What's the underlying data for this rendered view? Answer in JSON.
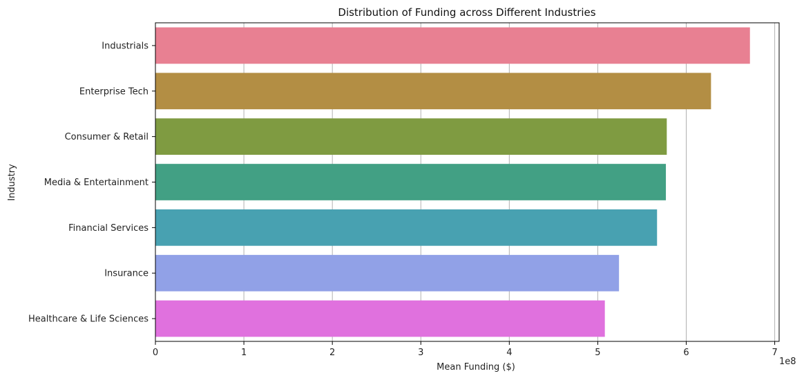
{
  "chart_data": {
    "type": "bar",
    "orientation": "horizontal",
    "title": "Distribution of Funding across Different Industries",
    "xlabel": "Mean Funding ($)",
    "ylabel": "Industry",
    "x_offset_label": "1e8",
    "xlim": [
      0,
      7.05
    ],
    "x_ticks": [
      0,
      1,
      2,
      3,
      4,
      5,
      6,
      7
    ],
    "x_tick_labels": [
      "0",
      "1",
      "2",
      "3",
      "4",
      "5",
      "6",
      "7"
    ],
    "grid": {
      "x": true,
      "y": false
    },
    "categories": [
      "Industrials",
      "Enterprise Tech",
      "Consumer & Retail",
      "Media & Entertainment",
      "Financial Services",
      "Insurance",
      "Healthcare & Life Sciences"
    ],
    "values": [
      6.72,
      6.28,
      5.78,
      5.77,
      5.67,
      5.24,
      5.08
    ],
    "colors": [
      "#e88092",
      "#b38e44",
      "#7f9b41",
      "#42a084",
      "#48a1b1",
      "#91a1e7",
      "#e071de"
    ]
  }
}
